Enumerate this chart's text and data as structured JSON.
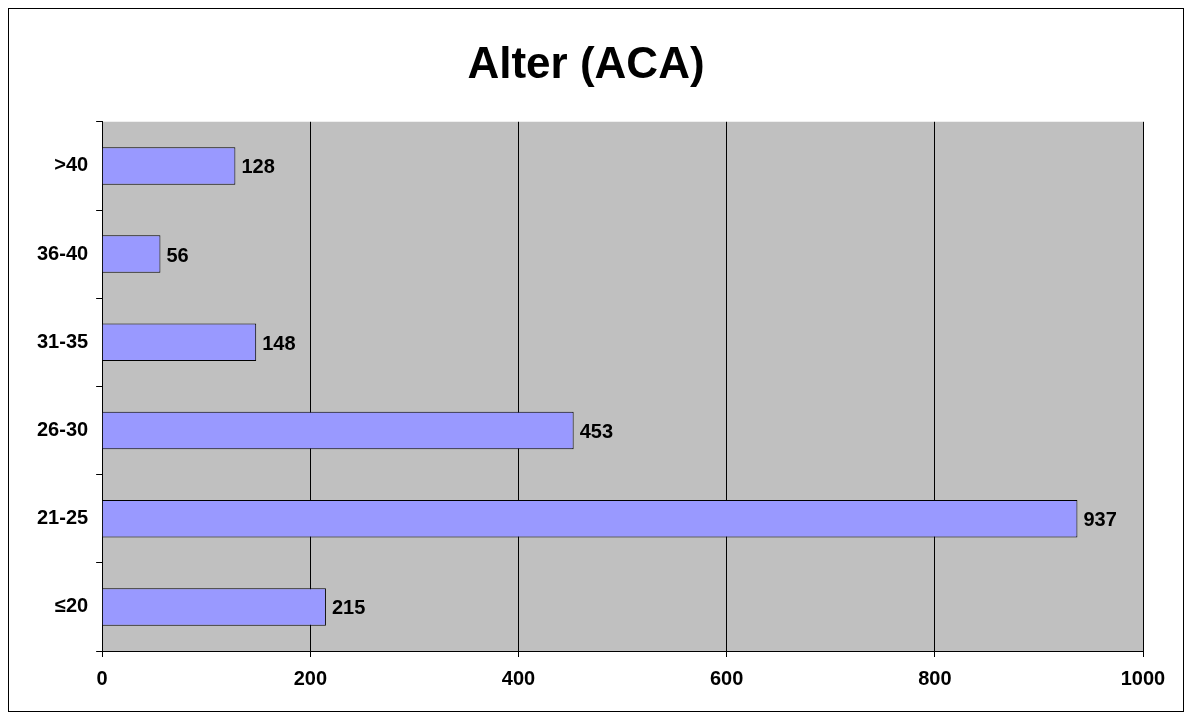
{
  "chart_data": {
    "type": "bar",
    "title": "Alter (ACA)",
    "orientation": "horizontal",
    "categories": [
      ">40",
      "36-40",
      "31-35",
      "26-30",
      "21-25",
      "≤20"
    ],
    "values": [
      128,
      56,
      148,
      453,
      937,
      215
    ],
    "color": "#9999ff",
    "xlim": [
      0,
      1000
    ],
    "xticks": [
      0,
      200,
      400,
      600,
      800,
      1000
    ],
    "grid": "x",
    "data_labels": true,
    "legend": false
  }
}
